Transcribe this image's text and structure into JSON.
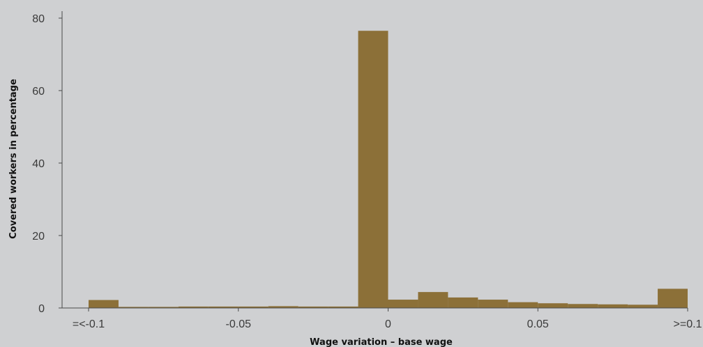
{
  "chart_data": {
    "type": "bar",
    "xlabel": "Wage variation – base wage",
    "ylabel": "Covered workers in percentage",
    "xlim": [
      -0.1,
      0.1
    ],
    "ylim": [
      0,
      80
    ],
    "yticks": [
      0,
      20,
      40,
      60,
      80
    ],
    "xticks": [
      {
        "value": -0.1,
        "label": "=<-0.1"
      },
      {
        "value": -0.05,
        "label": "-0.05"
      },
      {
        "value": 0,
        "label": "0"
      },
      {
        "value": 0.05,
        "label": "0.05"
      },
      {
        "value": 0.1,
        "label": ">=0.1"
      }
    ],
    "bin_width": 0.01,
    "bins": [
      {
        "start": -0.1,
        "end": -0.09,
        "value": 2.2
      },
      {
        "start": -0.09,
        "end": -0.08,
        "value": 0.3
      },
      {
        "start": -0.08,
        "end": -0.07,
        "value": 0.3
      },
      {
        "start": -0.07,
        "end": -0.06,
        "value": 0.4
      },
      {
        "start": -0.06,
        "end": -0.05,
        "value": 0.4
      },
      {
        "start": -0.05,
        "end": -0.04,
        "value": 0.4
      },
      {
        "start": -0.04,
        "end": -0.03,
        "value": 0.5
      },
      {
        "start": -0.03,
        "end": -0.02,
        "value": 0.4
      },
      {
        "start": -0.02,
        "end": -0.01,
        "value": 0.4
      },
      {
        "start": -0.01,
        "end": 0.0,
        "value": 76.5
      },
      {
        "start": 0.0,
        "end": 0.01,
        "value": 2.3
      },
      {
        "start": 0.01,
        "end": 0.02,
        "value": 4.4
      },
      {
        "start": 0.02,
        "end": 0.03,
        "value": 2.9
      },
      {
        "start": 0.03,
        "end": 0.04,
        "value": 2.3
      },
      {
        "start": 0.04,
        "end": 0.05,
        "value": 1.6
      },
      {
        "start": 0.05,
        "end": 0.06,
        "value": 1.3
      },
      {
        "start": 0.06,
        "end": 0.07,
        "value": 1.1
      },
      {
        "start": 0.07,
        "end": 0.08,
        "value": 1.0
      },
      {
        "start": 0.08,
        "end": 0.09,
        "value": 0.9
      },
      {
        "start": 0.09,
        "end": 0.1,
        "value": 5.3
      }
    ],
    "bar_color": "#8c7038",
    "background": "#cfd0d2",
    "grid": false,
    "legend": "none"
  }
}
